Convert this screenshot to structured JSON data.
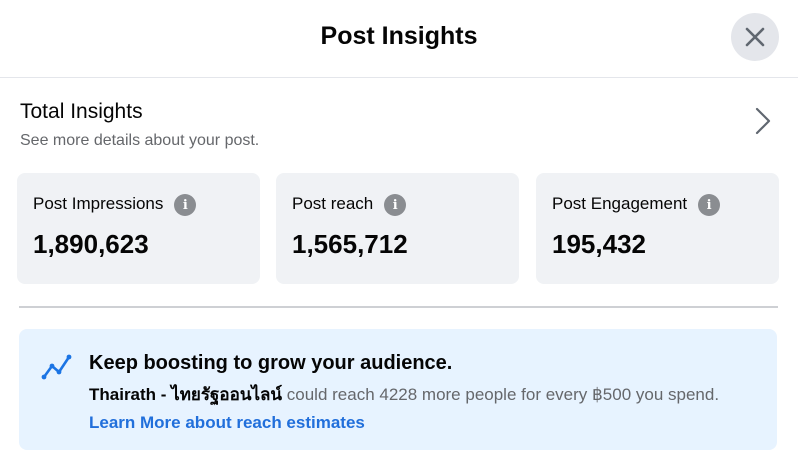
{
  "header": {
    "title": "Post Insights",
    "close_icon": "close-icon"
  },
  "total_insights": {
    "title": "Total Insights",
    "subtitle": "See more details about your post.",
    "icon": "chevron-right-icon"
  },
  "metrics": [
    {
      "label": "Post Impressions",
      "value": "1,890,623",
      "icon": "info-icon",
      "icon_glyph": "i"
    },
    {
      "label": "Post reach",
      "value": "1,565,712",
      "icon": "info-icon",
      "icon_glyph": "i"
    },
    {
      "label": "Post Engagement",
      "value": "195,432",
      "icon": "info-icon",
      "icon_glyph": "i"
    }
  ],
  "boost": {
    "icon": "trend-line-icon",
    "title": "Keep boosting to grow your audience.",
    "page_name": "Thairath - ไทยรัฐออนไลน์",
    "message": " could reach 4228 more people for every ฿500 you spend.",
    "link": "Learn More about reach estimates"
  },
  "colors": {
    "card_bg": "#f0f2f5",
    "boost_bg": "#e7f3ff",
    "link": "#216fdb",
    "secondary_text": "#65676b"
  }
}
